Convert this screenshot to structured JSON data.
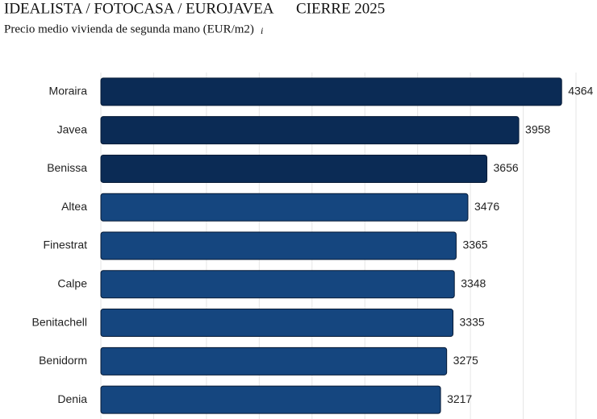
{
  "chart_data": {
    "type": "barh",
    "title": "IDEALISTA / FOTOCASA / EUROJAVEA",
    "period": "CIERRE 2025",
    "subtitle": "Precio medio vivienda de segunda mano (EUR/m2)",
    "categories": [
      "Moraira",
      "Javea",
      "Benissa",
      "Altea",
      "Finestrat",
      "Calpe",
      "Benitachell",
      "Benidorm",
      "Denia"
    ],
    "values": [
      4364,
      3958,
      3656,
      3476,
      3365,
      3348,
      3335,
      3275,
      3217
    ],
    "colors": [
      "#0b2b55",
      "#0b2b55",
      "#0b2b55",
      "#15467f",
      "#15467f",
      "#15467f",
      "#15467f",
      "#15467f",
      "#15467f"
    ],
    "xlim": [
      0,
      4500
    ],
    "xticks": [
      0,
      500,
      1000,
      1500,
      2000,
      2500,
      3000,
      3500,
      4000,
      4500
    ],
    "grid": true
  }
}
